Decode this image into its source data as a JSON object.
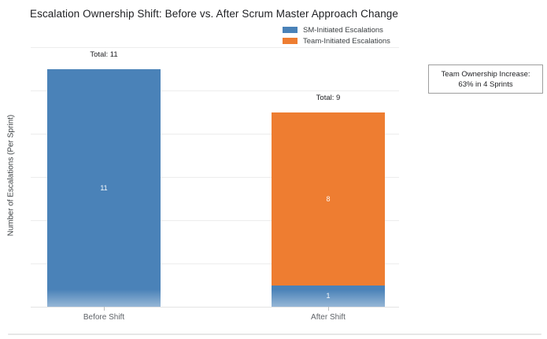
{
  "annotation": {
    "line1": "Team Ownership Increase:",
    "line2": "63% in 4 Sprints"
  },
  "chart_data": {
    "type": "bar",
    "stacked": true,
    "title": "Escalation Ownership Shift: Before vs. After Scrum Master Approach Change",
    "ylabel": "Number of Escalations (Per Sprint)",
    "xlabel": "",
    "categories": [
      "Before Shift",
      "After Shift"
    ],
    "series": [
      {
        "name": "SM-Initiated Escalations",
        "color": "#4A82B8",
        "values": [
          11,
          1
        ]
      },
      {
        "name": "Team-Initiated Escalations",
        "color": "#EE7D31",
        "values": [
          0,
          8
        ]
      }
    ],
    "totals": [
      11,
      9
    ],
    "total_labels": [
      "Total: 11",
      "Total: 9"
    ],
    "ylim": [
      0,
      12.2
    ],
    "gridlines": [
      2,
      4,
      6,
      8,
      10,
      12
    ],
    "grid": true,
    "y_tick_labels_visible": false,
    "legend_position": "top-right",
    "bar_label_color": "#ffffff"
  }
}
